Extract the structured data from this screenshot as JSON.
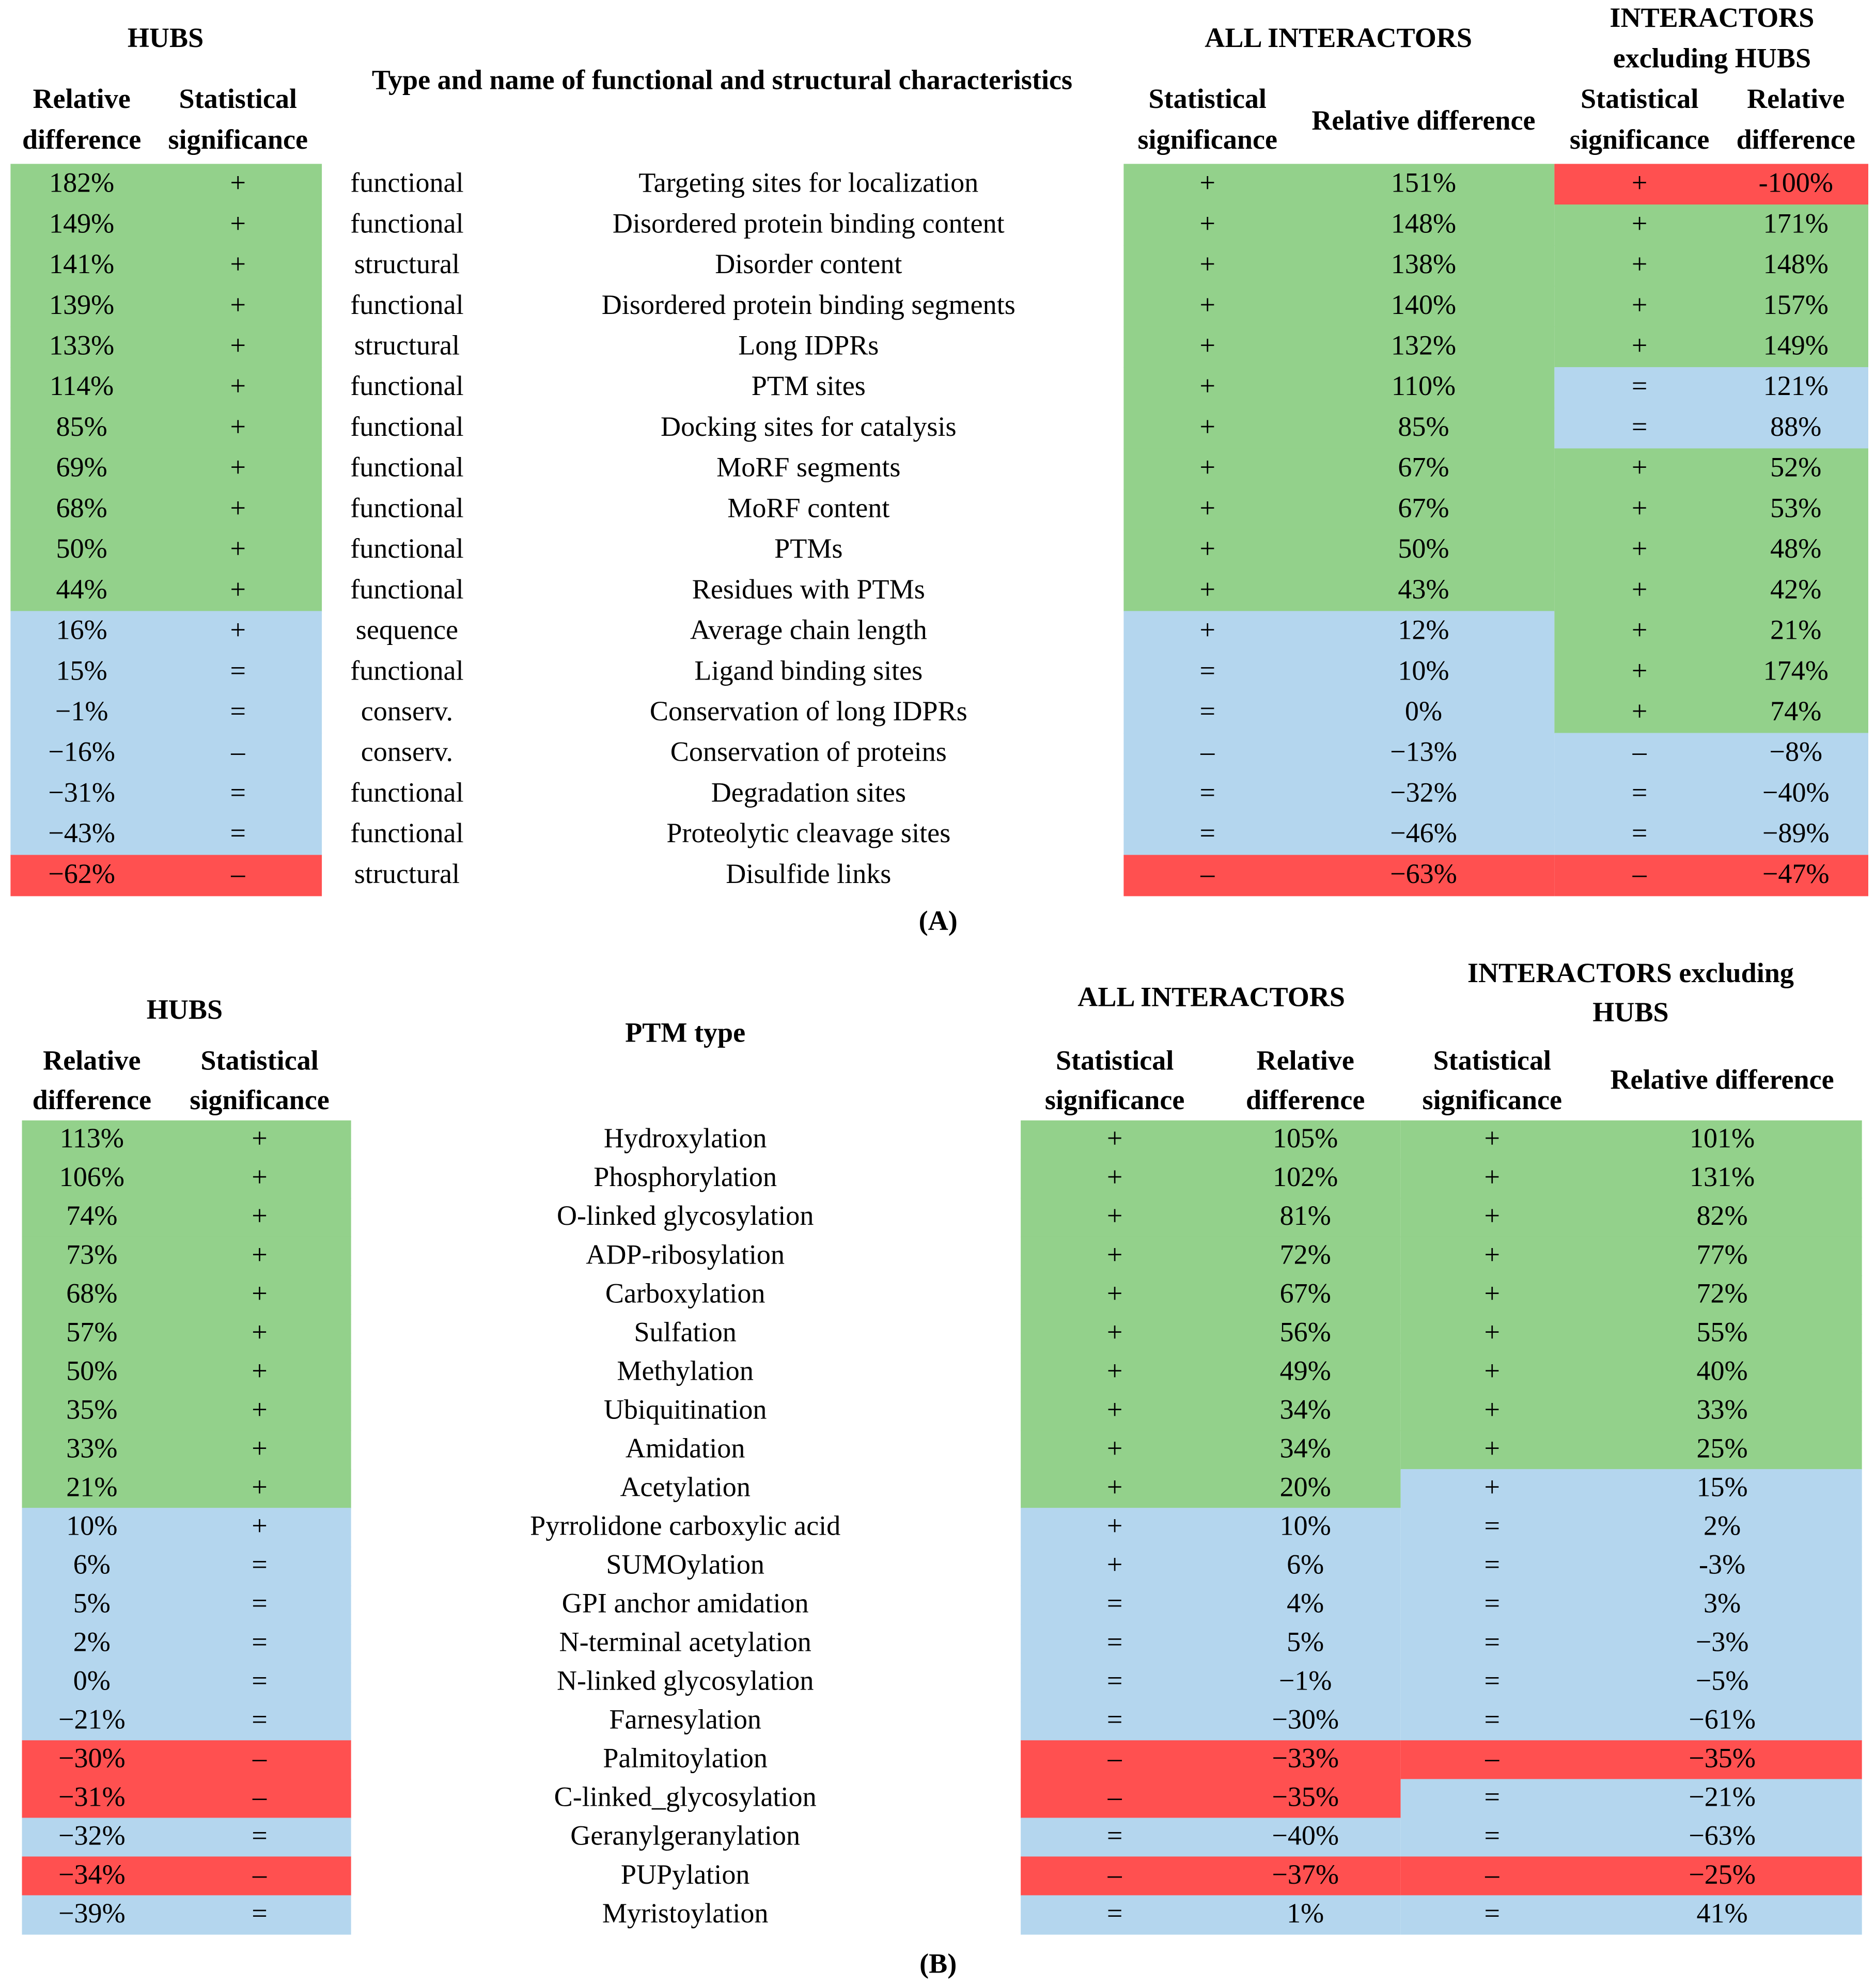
{
  "panel_a": {
    "headers": {
      "hubs": "HUBS",
      "hubs_rel": [
        "Relative",
        "difference"
      ],
      "hubs_sig": [
        "Statistical",
        "significance"
      ],
      "middle": "Type and name of functional and structural characteristics",
      "all": "ALL INTERACTORS",
      "all_sig": [
        "Statistical",
        "significance"
      ],
      "all_rel": [
        "Relative difference"
      ],
      "exc": [
        "INTERACTORS",
        "excluding HUBS"
      ],
      "exc_sig": [
        "Statistical",
        "significance"
      ],
      "exc_rel": [
        "Relative",
        "difference"
      ]
    },
    "rows": [
      {
        "cells": [
          "182%",
          "+",
          "functional",
          "Targeting sites for localization",
          "+",
          "151%",
          "+",
          "-100%"
        ],
        "colors": [
          "#93d18b",
          "#93d18b",
          "#ff5050"
        ]
      },
      {
        "cells": [
          "149%",
          "+",
          "functional",
          "Disordered protein binding content",
          "+",
          "148%",
          "+",
          "171%"
        ],
        "colors": [
          "#93d18b",
          "#93d18b",
          "#93d18b"
        ]
      },
      {
        "cells": [
          "141%",
          "+",
          "structural",
          "Disorder content",
          "+",
          "138%",
          "+",
          "148%"
        ],
        "colors": [
          "#93d18b",
          "#93d18b",
          "#93d18b"
        ]
      },
      {
        "cells": [
          "139%",
          "+",
          "functional",
          "Disordered protein binding segments",
          "+",
          "140%",
          "+",
          "157%"
        ],
        "colors": [
          "#93d18b",
          "#93d18b",
          "#93d18b"
        ]
      },
      {
        "cells": [
          "133%",
          "+",
          "structural",
          "Long IDPRs",
          "+",
          "132%",
          "+",
          "149%"
        ],
        "colors": [
          "#93d18b",
          "#93d18b",
          "#93d18b"
        ]
      },
      {
        "cells": [
          "114%",
          "+",
          "functional",
          "PTM sites",
          "+",
          "110%",
          "=",
          "121%"
        ],
        "colors": [
          "#93d18b",
          "#93d18b",
          "#b4d6ee"
        ]
      },
      {
        "cells": [
          "85%",
          "+",
          "functional",
          "Docking sites for catalysis",
          "+",
          "85%",
          "=",
          "88%"
        ],
        "colors": [
          "#93d18b",
          "#93d18b",
          "#b4d6ee"
        ]
      },
      {
        "cells": [
          "69%",
          "+",
          "functional",
          "MoRF segments",
          "+",
          "67%",
          "+",
          "52%"
        ],
        "colors": [
          "#93d18b",
          "#93d18b",
          "#93d18b"
        ]
      },
      {
        "cells": [
          "68%",
          "+",
          "functional",
          "MoRF content",
          "+",
          "67%",
          "+",
          "53%"
        ],
        "colors": [
          "#93d18b",
          "#93d18b",
          "#93d18b"
        ]
      },
      {
        "cells": [
          "50%",
          "+",
          "functional",
          "PTMs",
          "+",
          "50%",
          "+",
          "48%"
        ],
        "colors": [
          "#93d18b",
          "#93d18b",
          "#93d18b"
        ]
      },
      {
        "cells": [
          "44%",
          "+",
          "functional",
          "Residues with PTMs",
          "+",
          "43%",
          "+",
          "42%"
        ],
        "colors": [
          "#93d18b",
          "#93d18b",
          "#93d18b"
        ]
      },
      {
        "cells": [
          "16%",
          "+",
          "sequence",
          "Average chain length",
          "+",
          "12%",
          "+",
          "21%"
        ],
        "colors": [
          "#b4d6ee",
          "#b4d6ee",
          "#93d18b"
        ]
      },
      {
        "cells": [
          "15%",
          "=",
          "functional",
          "Ligand binding sites",
          "=",
          "10%",
          "+",
          "174%"
        ],
        "colors": [
          "#b4d6ee",
          "#b4d6ee",
          "#93d18b"
        ]
      },
      {
        "cells": [
          "−1%",
          "=",
          "conserv.",
          "Conservation of long IDPRs",
          "=",
          "0%",
          "+",
          "74%"
        ],
        "colors": [
          "#b4d6ee",
          "#b4d6ee",
          "#93d18b"
        ]
      },
      {
        "cells": [
          "−16%",
          "–",
          "conserv.",
          "Conservation of proteins",
          "–",
          "−13%",
          "–",
          "−8%"
        ],
        "colors": [
          "#b4d6ee",
          "#b4d6ee",
          "#b4d6ee"
        ]
      },
      {
        "cells": [
          "−31%",
          "=",
          "functional",
          "Degradation sites",
          "=",
          "−32%",
          "=",
          "−40%"
        ],
        "colors": [
          "#b4d6ee",
          "#b4d6ee",
          "#b4d6ee"
        ]
      },
      {
        "cells": [
          "−43%",
          "=",
          "functional",
          "Proteolytic cleavage sites",
          "=",
          "−46%",
          "=",
          "−89%"
        ],
        "colors": [
          "#b4d6ee",
          "#b4d6ee",
          "#b4d6ee"
        ]
      },
      {
        "cells": [
          "−62%",
          "–",
          "structural",
          "Disulfide links",
          "–",
          "−63%",
          "–",
          "−47%"
        ],
        "colors": [
          "#ff5050",
          "#ff5050",
          "#ff5050"
        ]
      }
    ],
    "label": "(A)"
  },
  "panel_b": {
    "headers": {
      "hubs": "HUBS",
      "hubs_rel": [
        "Relative",
        "difference"
      ],
      "hubs_sig": [
        "Statistical",
        "significance"
      ],
      "middle": "PTM type",
      "all": "ALL INTERACTORS",
      "all_sig": [
        "Statistical",
        "significance"
      ],
      "all_rel": [
        "Relative",
        "difference"
      ],
      "exc": [
        "INTERACTORS excluding",
        "HUBS"
      ],
      "exc_sig": [
        "Statistical",
        "significance"
      ],
      "exc_rel": [
        "Relative difference"
      ]
    },
    "rows": [
      {
        "cells": [
          "113%",
          "+",
          "Hydroxylation",
          "+",
          "105%",
          "+",
          "101%"
        ],
        "colors": [
          "#93d18b",
          "#93d18b",
          "#93d18b"
        ]
      },
      {
        "cells": [
          "106%",
          "+",
          "Phosphorylation",
          "+",
          "102%",
          "+",
          "131%"
        ],
        "colors": [
          "#93d18b",
          "#93d18b",
          "#93d18b"
        ]
      },
      {
        "cells": [
          "74%",
          "+",
          "O-linked glycosylation",
          "+",
          "81%",
          "+",
          "82%"
        ],
        "colors": [
          "#93d18b",
          "#93d18b",
          "#93d18b"
        ]
      },
      {
        "cells": [
          "73%",
          "+",
          "ADP-ribosylation",
          "+",
          "72%",
          "+",
          "77%"
        ],
        "colors": [
          "#93d18b",
          "#93d18b",
          "#93d18b"
        ]
      },
      {
        "cells": [
          "68%",
          "+",
          "Carboxylation",
          "+",
          "67%",
          "+",
          "72%"
        ],
        "colors": [
          "#93d18b",
          "#93d18b",
          "#93d18b"
        ]
      },
      {
        "cells": [
          "57%",
          "+",
          "Sulfation",
          "+",
          "56%",
          "+",
          "55%"
        ],
        "colors": [
          "#93d18b",
          "#93d18b",
          "#93d18b"
        ]
      },
      {
        "cells": [
          "50%",
          "+",
          "Methylation",
          "+",
          "49%",
          "+",
          "40%"
        ],
        "colors": [
          "#93d18b",
          "#93d18b",
          "#93d18b"
        ]
      },
      {
        "cells": [
          "35%",
          "+",
          "Ubiquitination",
          "+",
          "34%",
          "+",
          "33%"
        ],
        "colors": [
          "#93d18b",
          "#93d18b",
          "#93d18b"
        ]
      },
      {
        "cells": [
          "33%",
          "+",
          "Amidation",
          "+",
          "34%",
          "+",
          "25%"
        ],
        "colors": [
          "#93d18b",
          "#93d18b",
          "#93d18b"
        ]
      },
      {
        "cells": [
          "21%",
          "+",
          "Acetylation",
          "+",
          "20%",
          "+",
          "15%"
        ],
        "colors": [
          "#93d18b",
          "#93d18b",
          "#b4d6ee"
        ]
      },
      {
        "cells": [
          "10%",
          "+",
          "Pyrrolidone carboxylic acid",
          "+",
          "10%",
          "=",
          "2%"
        ],
        "colors": [
          "#b4d6ee",
          "#b4d6ee",
          "#b4d6ee"
        ]
      },
      {
        "cells": [
          "6%",
          "=",
          "SUMOylation",
          "+",
          "6%",
          "=",
          "-3%"
        ],
        "colors": [
          "#b4d6ee",
          "#b4d6ee",
          "#b4d6ee"
        ]
      },
      {
        "cells": [
          "5%",
          "=",
          "GPI anchor amidation",
          "=",
          "4%",
          "=",
          "3%"
        ],
        "colors": [
          "#b4d6ee",
          "#b4d6ee",
          "#b4d6ee"
        ]
      },
      {
        "cells": [
          "2%",
          "=",
          "N-terminal acetylation",
          "=",
          "5%",
          "=",
          "−3%"
        ],
        "colors": [
          "#b4d6ee",
          "#b4d6ee",
          "#b4d6ee"
        ]
      },
      {
        "cells": [
          "0%",
          "=",
          "N-linked glycosylation",
          "=",
          "−1%",
          "=",
          "−5%"
        ],
        "colors": [
          "#b4d6ee",
          "#b4d6ee",
          "#b4d6ee"
        ]
      },
      {
        "cells": [
          "−21%",
          "=",
          "Farnesylation",
          "=",
          "−30%",
          "=",
          "−61%"
        ],
        "colors": [
          "#b4d6ee",
          "#b4d6ee",
          "#b4d6ee"
        ]
      },
      {
        "cells": [
          "−30%",
          "–",
          "Palmitoylation",
          "–",
          "−33%",
          "–",
          "−35%"
        ],
        "colors": [
          "#ff5050",
          "#ff5050",
          "#ff5050"
        ]
      },
      {
        "cells": [
          "−31%",
          "–",
          "C-linked_glycosylation",
          "–",
          "−35%",
          "=",
          "−21%"
        ],
        "colors": [
          "#ff5050",
          "#ff5050",
          "#b4d6ee"
        ]
      },
      {
        "cells": [
          "−32%",
          "=",
          "Geranylgeranylation",
          "=",
          "−40%",
          "=",
          "−63%"
        ],
        "colors": [
          "#b4d6ee",
          "#b4d6ee",
          "#b4d6ee"
        ]
      },
      {
        "cells": [
          "−34%",
          "–",
          "PUPylation",
          "–",
          "−37%",
          "–",
          "−25%"
        ],
        "colors": [
          "#ff5050",
          "#ff5050",
          "#ff5050"
        ]
      },
      {
        "cells": [
          "−39%",
          "=",
          "Myristoylation",
          "=",
          "1%",
          "=",
          "41%"
        ],
        "colors": [
          "#b4d6ee",
          "#b4d6ee",
          "#b4d6ee"
        ]
      }
    ],
    "label": "(B)"
  }
}
